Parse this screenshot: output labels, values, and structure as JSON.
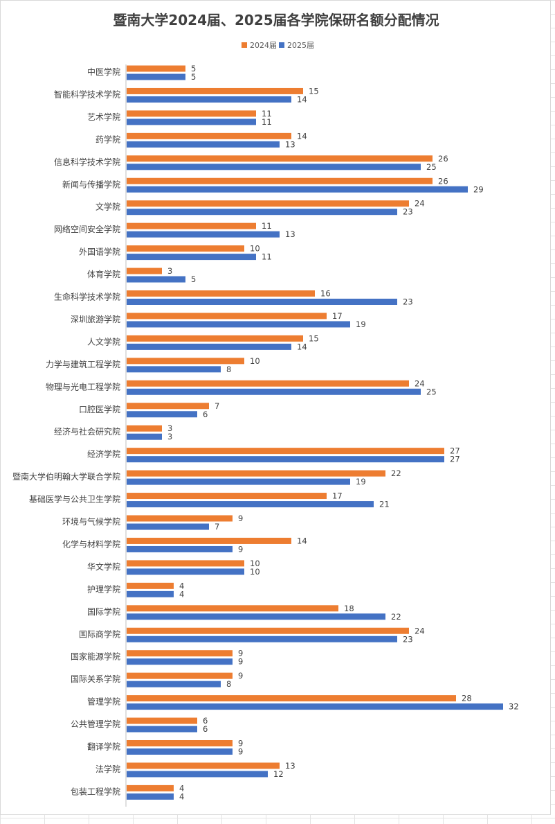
{
  "chart_data": {
    "type": "bar",
    "orientation": "horizontal",
    "title": "暨南大学2024届、2025届各学院保研名额分配情况",
    "legend_position": "top",
    "grid": false,
    "xlim": [
      0,
      32
    ],
    "categories": [
      "中医学院",
      "智能科学技术学院",
      "艺术学院",
      "药学院",
      "信息科学技术学院",
      "新闻与传播学院",
      "文学院",
      "网络空间安全学院",
      "外国语学院",
      "体育学院",
      "生命科学技术学院",
      "深圳旅游学院",
      "人文学院",
      "力学与建筑工程学院",
      "物理与光电工程学院",
      "口腔医学院",
      "经济与社会研究院",
      "经济学院",
      "暨南大学伯明翰大学联合学院",
      "基础医学与公共卫生学院",
      "环境与气候学院",
      "化学与材料学院",
      "华文学院",
      "护理学院",
      "国际学院",
      "国际商学院",
      "国家能源学院",
      "国际关系学院",
      "管理学院",
      "公共管理学院",
      "翻译学院",
      "法学院",
      "包装工程学院"
    ],
    "series": [
      {
        "name": "2024届",
        "color": "#ED7D31",
        "values": [
          5,
          15,
          11,
          14,
          26,
          26,
          24,
          11,
          10,
          3,
          16,
          17,
          15,
          10,
          24,
          7,
          3,
          27,
          22,
          17,
          9,
          14,
          10,
          4,
          18,
          24,
          9,
          9,
          28,
          6,
          9,
          13,
          4
        ]
      },
      {
        "name": "2025届",
        "color": "#4472C4",
        "values": [
          5,
          14,
          11,
          13,
          25,
          29,
          23,
          13,
          11,
          5,
          23,
          19,
          14,
          8,
          25,
          6,
          3,
          27,
          19,
          21,
          7,
          9,
          10,
          4,
          22,
          23,
          9,
          8,
          32,
          6,
          9,
          12,
          4
        ]
      }
    ],
    "axis_color": "#bfbfbf"
  }
}
